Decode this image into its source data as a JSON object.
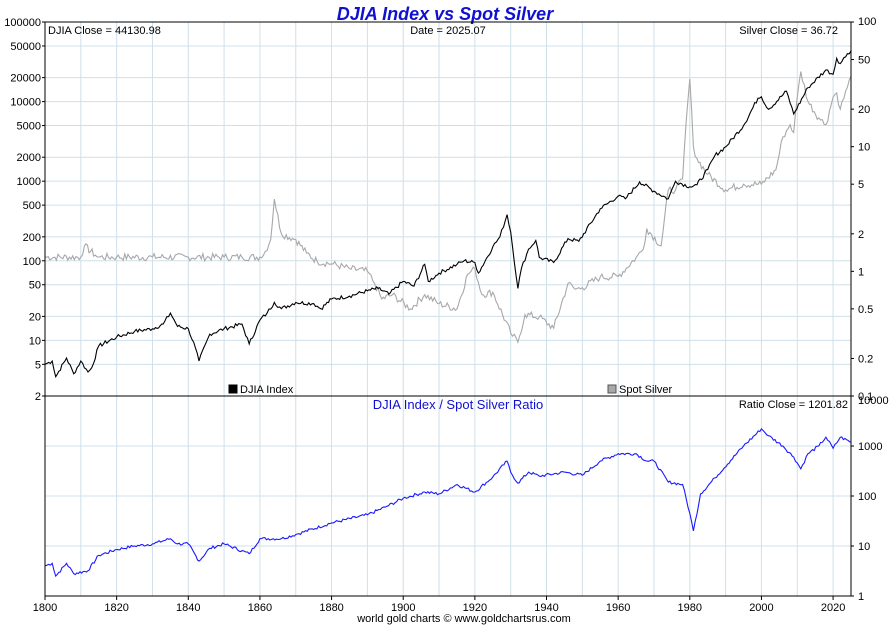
{
  "title": "DJIA Index vs Spot Silver",
  "footer": "world gold charts © www.goldchartsrus.com",
  "colors": {
    "djia": "#000000",
    "silver": "#a8a8a8",
    "ratio": "#1a1aff",
    "title": "#1010d0",
    "grid": "#cfe0ea"
  },
  "chart_data": [
    {
      "type": "line",
      "panel": "top",
      "title": "DJIA Index vs Spot Silver",
      "readouts": {
        "left": "DJIA Close = 44130.98",
        "center": "Date = 2025.07",
        "right": "Silver Close = 36.72"
      },
      "x_range": [
        1800,
        2025
      ],
      "left_axis": {
        "scale": "log",
        "range": [
          2,
          100000
        ],
        "ticks": [
          2,
          5,
          10,
          20,
          50,
          100,
          200,
          500,
          1000,
          2000,
          5000,
          10000,
          20000,
          50000,
          100000
        ],
        "tick_labels": [
          "2",
          "5",
          "10",
          "20",
          "50",
          "100",
          "200",
          "500",
          "1000",
          "2000",
          "5000",
          "10000",
          "20000",
          "50000",
          "100000"
        ]
      },
      "right_axis": {
        "scale": "log",
        "range": [
          0.1,
          100
        ],
        "ticks": [
          0.1,
          0.2,
          0.5,
          1,
          2,
          5,
          10,
          20,
          50,
          100
        ],
        "tick_labels": [
          "0.1",
          "0.2",
          "0.5",
          "1",
          "2",
          "5",
          "10",
          "20",
          "50",
          "100"
        ]
      },
      "legend": {
        "placement": "bottom",
        "entries": [
          "DJIA Index",
          "Spot Silver"
        ]
      },
      "grid": true,
      "series": [
        {
          "name": "DJIA Index",
          "axis": "left",
          "x": [
            1800,
            1802,
            1803,
            1806,
            1808,
            1810,
            1812,
            1813,
            1815,
            1820,
            1825,
            1830,
            1833,
            1835,
            1837,
            1840,
            1842,
            1843,
            1846,
            1850,
            1855,
            1857,
            1860,
            1862,
            1864,
            1866,
            1870,
            1875,
            1877,
            1880,
            1885,
            1890,
            1893,
            1896,
            1900,
            1903,
            1906,
            1907,
            1910,
            1915,
            1917,
            1920,
            1921,
            1925,
            1927,
            1929,
            1930,
            1932,
            1933,
            1935,
            1937,
            1938,
            1942,
            1946,
            1949,
            1955,
            1960,
            1962,
            1966,
            1970,
            1974,
            1976,
            1980,
            1982,
            1985,
            1987,
            1990,
            1995,
            1999,
            2000,
            2002,
            2007,
            2009,
            2013,
            2018,
            2020,
            2021,
            2022,
            2024,
            2025.07
          ],
          "y": [
            5,
            5.5,
            3.5,
            6,
            3.8,
            5.5,
            4,
            4.5,
            8.5,
            11,
            13,
            14,
            16,
            22,
            15,
            14,
            8,
            5.5,
            12,
            14,
            16,
            9,
            18,
            22,
            30,
            25,
            30,
            29,
            25,
            33,
            36,
            42,
            45,
            38,
            55,
            48,
            90,
            55,
            70,
            90,
            100,
            95,
            70,
            150,
            200,
            380,
            230,
            45,
            80,
            140,
            180,
            110,
            95,
            190,
            175,
            450,
            650,
            600,
            980,
            750,
            600,
            1000,
            850,
            900,
            1400,
            2100,
            2700,
            5000,
            11000,
            11500,
            8000,
            13500,
            7000,
            15000,
            25000,
            22000,
            35000,
            30000,
            40000,
            44130.98
          ]
        },
        {
          "name": "Spot Silver",
          "axis": "right",
          "x": [
            1800,
            1810,
            1811,
            1814,
            1815,
            1820,
            1830,
            1840,
            1850,
            1855,
            1860,
            1861,
            1863,
            1864,
            1866,
            1870,
            1873,
            1876,
            1880,
            1885,
            1890,
            1892,
            1894,
            1897,
            1902,
            1906,
            1910,
            1915,
            1918,
            1920,
            1922,
            1925,
            1930,
            1932,
            1934,
            1938,
            1942,
            1946,
            1948,
            1950,
            1955,
            1960,
            1965,
            1967,
            1968,
            1972,
            1974,
            1976,
            1978,
            1979,
            1980,
            1981,
            1982,
            1985,
            1990,
            1995,
            2000,
            2004,
            2006,
            2008,
            2009,
            2010,
            2011,
            2013,
            2016,
            2018,
            2020,
            2021,
            2022,
            2024,
            2025.07
          ],
          "y": [
            1.3,
            1.3,
            1.6,
            1.35,
            1.3,
            1.3,
            1.3,
            1.3,
            1.3,
            1.3,
            1.3,
            1.35,
            1.8,
            3.8,
            2.0,
            1.8,
            1.4,
            1.2,
            1.15,
            1.05,
            1.0,
            0.8,
            0.6,
            0.65,
            0.5,
            0.65,
            0.55,
            0.5,
            0.95,
            1.05,
            0.65,
            0.68,
            0.32,
            0.27,
            0.45,
            0.43,
            0.35,
            0.8,
            0.72,
            0.74,
            0.9,
            0.91,
            1.29,
            1.5,
            2.2,
            1.6,
            4.5,
            4.5,
            5.5,
            16,
            35,
            10,
            8,
            6,
            4.5,
            5.0,
            5.0,
            6.5,
            12,
            15,
            13,
            25,
            40,
            23,
            17,
            15,
            25,
            27,
            20,
            30,
            36.72
          ]
        }
      ]
    },
    {
      "type": "line",
      "panel": "bottom",
      "title": "DJIA Index / Spot Silver Ratio",
      "readout": "Ratio Close = 1201.82",
      "x_range": [
        1800,
        2025
      ],
      "xticks": [
        1800,
        1820,
        1840,
        1860,
        1880,
        1900,
        1920,
        1940,
        1960,
        1980,
        2000,
        2020
      ],
      "xtick_labels": [
        "1800",
        "1820",
        "1840",
        "1860",
        "1880",
        "1900",
        "1920",
        "1940",
        "1960",
        "1980",
        "2000",
        "2020"
      ],
      "right_axis": {
        "scale": "log",
        "range": [
          1,
          10000
        ],
        "ticks": [
          1,
          10,
          100,
          1000,
          10000
        ],
        "tick_labels": [
          "1",
          "10",
          "100",
          "1000",
          "10000"
        ]
      },
      "grid": true,
      "series": [
        {
          "name": "DJIA Index / Spot Silver Ratio",
          "axis": "right",
          "x": [
            1800,
            1802,
            1803,
            1806,
            1808,
            1812,
            1815,
            1820,
            1825,
            1830,
            1835,
            1837,
            1840,
            1843,
            1846,
            1850,
            1857,
            1860,
            1866,
            1870,
            1880,
            1890,
            1895,
            1900,
            1906,
            1910,
            1915,
            1920,
            1925,
            1929,
            1930,
            1932,
            1935,
            1938,
            1945,
            1950,
            1955,
            1960,
            1965,
            1968,
            1970,
            1974,
            1978,
            1980,
            1981,
            1983,
            1987,
            1995,
            2000,
            2002,
            2006,
            2009,
            2011,
            2013,
            2016,
            2018,
            2020,
            2022,
            2025.07
          ],
          "y": [
            4,
            4.5,
            2.5,
            4.5,
            2.8,
            3.2,
            6.5,
            8.5,
            10,
            11,
            14,
            11,
            11,
            5,
            9,
            11,
            7,
            14,
            14,
            17,
            29,
            42,
            60,
            90,
            120,
            110,
            170,
            120,
            240,
            500,
            300,
            180,
            300,
            250,
            300,
            260,
            500,
            700,
            700,
            500,
            500,
            190,
            170,
            45,
            20,
            110,
            230,
            1000,
            2200,
            1600,
            1000,
            600,
            350,
            700,
            1000,
            1500,
            900,
            1500,
            1201.82
          ]
        }
      ]
    }
  ]
}
